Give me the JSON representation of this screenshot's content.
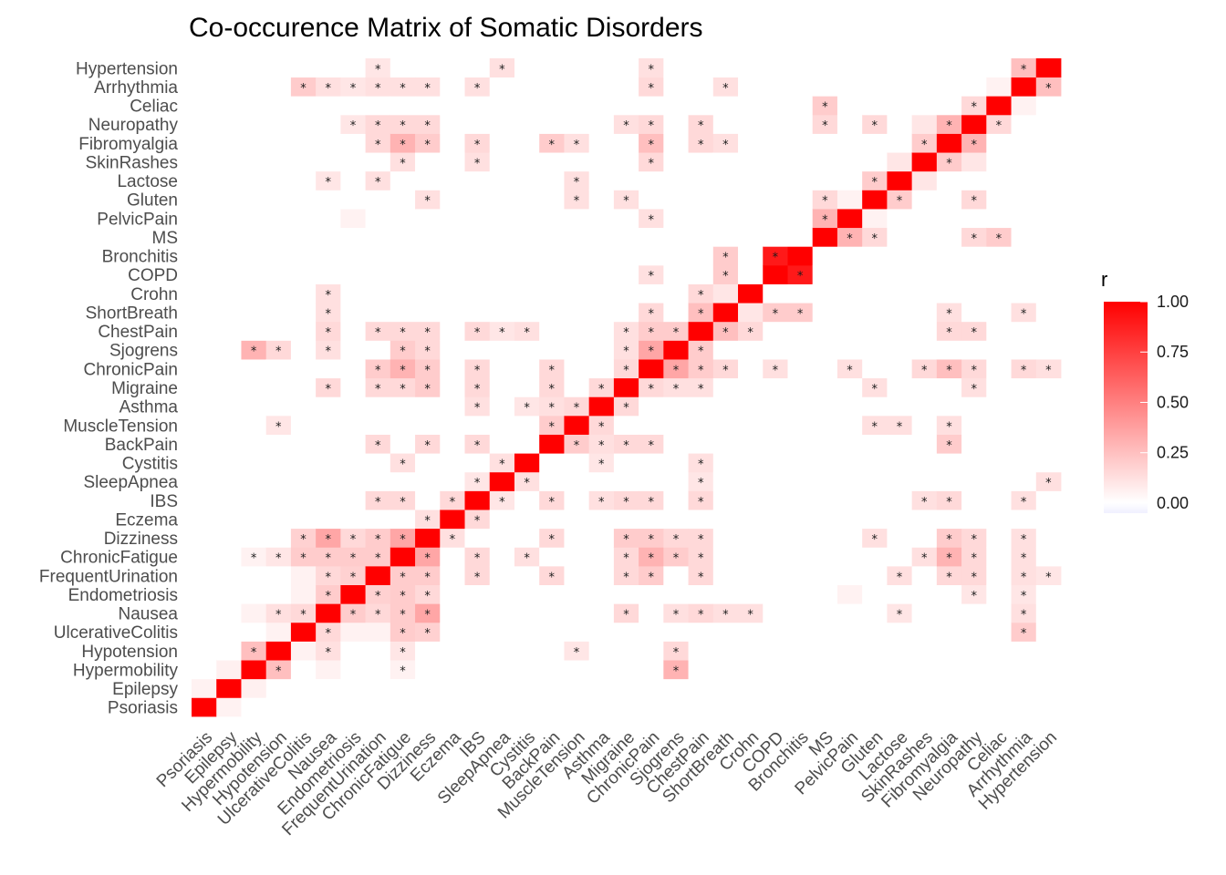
{
  "chart_data": {
    "type": "heatmap",
    "title": "Co-occurence Matrix of Somatic Disorders",
    "xlabel": "",
    "ylabel": "",
    "legend": {
      "title": "r",
      "placement": "right",
      "ticks": [
        "1.00",
        "0.75",
        "0.50",
        "0.25",
        "0.00"
      ],
      "tick_values": [
        1.0,
        0.75,
        0.5,
        0.25,
        0.0
      ],
      "range": [
        -0.05,
        1.0
      ]
    },
    "colors": {
      "high": "#ff0000",
      "mid": "#ffffff",
      "low": "#f0f0ff"
    },
    "significance_marker": "*",
    "variables": [
      "Psoriasis",
      "Epilepsy",
      "Hypermobility",
      "Hypotension",
      "UlcerativeColitis",
      "Nausea",
      "Endometriosis",
      "FrequentUrination",
      "ChronicFatigue",
      "Dizziness",
      "Eczema",
      "IBS",
      "SleepApnea",
      "Cystitis",
      "BackPain",
      "MuscleTension",
      "Asthma",
      "Migraine",
      "ChronicPain",
      "Sjogrens",
      "ChestPain",
      "ShortBreath",
      "Crohn",
      "COPD",
      "Bronchitis",
      "MS",
      "PelvicPain",
      "Gluten",
      "Lactose",
      "SkinRashes",
      "Fibromyalgia",
      "Neuropathy",
      "Celiac",
      "Arrhythmia",
      "Hypertension"
    ],
    "pairs": [
      [
        "Psoriasis",
        "Epilepsy",
        0.05,
        false
      ],
      [
        "Epilepsy",
        "Hypermobility",
        0.06,
        false
      ],
      [
        "Hypermobility",
        "Hypotension",
        0.25,
        true
      ],
      [
        "Hypermobility",
        "ChronicFatigue",
        0.05,
        true
      ],
      [
        "Hypermobility",
        "Sjogrens",
        0.3,
        true
      ],
      [
        "Hypermobility",
        "Nausea",
        0.05,
        false
      ],
      [
        "Hypotension",
        "UlcerativeColitis",
        0.05,
        false
      ],
      [
        "Hypotension",
        "Nausea",
        0.12,
        true
      ],
      [
        "Hypotension",
        "ChronicFatigue",
        0.1,
        true
      ],
      [
        "Hypotension",
        "MuscleTension",
        0.1,
        true
      ],
      [
        "Hypotension",
        "Sjogrens",
        0.15,
        true
      ],
      [
        "UlcerativeColitis",
        "Nausea",
        0.15,
        true
      ],
      [
        "UlcerativeColitis",
        "ChronicFatigue",
        0.2,
        true
      ],
      [
        "UlcerativeColitis",
        "Dizziness",
        0.18,
        true
      ],
      [
        "UlcerativeColitis",
        "Arrhythmia",
        0.2,
        true
      ],
      [
        "UlcerativeColitis",
        "FrequentUrination",
        0.05,
        false
      ],
      [
        "UlcerativeColitis",
        "Endometriosis",
        0.05,
        false
      ],
      [
        "Nausea",
        "Endometriosis",
        0.2,
        true
      ],
      [
        "Nausea",
        "FrequentUrination",
        0.15,
        true
      ],
      [
        "Nausea",
        "ChronicFatigue",
        0.2,
        true
      ],
      [
        "Nausea",
        "Dizziness",
        0.35,
        true
      ],
      [
        "Nausea",
        "Migraine",
        0.15,
        true
      ],
      [
        "Nausea",
        "ChestPain",
        0.15,
        true
      ],
      [
        "Nausea",
        "ShortBreath",
        0.12,
        true
      ],
      [
        "Nausea",
        "Crohn",
        0.12,
        true
      ],
      [
        "Nausea",
        "Sjogrens",
        0.12,
        true
      ],
      [
        "Nausea",
        "Lactose",
        0.1,
        true
      ],
      [
        "Nausea",
        "Arrhythmia",
        0.12,
        true
      ],
      [
        "Endometriosis",
        "FrequentUrination",
        0.18,
        true
      ],
      [
        "Endometriosis",
        "ChronicFatigue",
        0.2,
        true
      ],
      [
        "Endometriosis",
        "Dizziness",
        0.15,
        true
      ],
      [
        "Endometriosis",
        "Neuropathy",
        0.1,
        true
      ],
      [
        "Endometriosis",
        "Arrhythmia",
        0.1,
        true
      ],
      [
        "Endometriosis",
        "PelvicPain",
        0.05,
        false
      ],
      [
        "FrequentUrination",
        "ChronicFatigue",
        0.2,
        true
      ],
      [
        "FrequentUrination",
        "Dizziness",
        0.2,
        true
      ],
      [
        "FrequentUrination",
        "IBS",
        0.15,
        true
      ],
      [
        "FrequentUrination",
        "BackPain",
        0.15,
        true
      ],
      [
        "FrequentUrination",
        "Migraine",
        0.15,
        true
      ],
      [
        "FrequentUrination",
        "ChronicPain",
        0.2,
        true
      ],
      [
        "FrequentUrination",
        "ChestPain",
        0.15,
        true
      ],
      [
        "FrequentUrination",
        "Lactose",
        0.12,
        true
      ],
      [
        "FrequentUrination",
        "Fibromyalgia",
        0.15,
        true
      ],
      [
        "FrequentUrination",
        "Neuropathy",
        0.15,
        true
      ],
      [
        "FrequentUrination",
        "Arrhythmia",
        0.12,
        true
      ],
      [
        "FrequentUrination",
        "Hypertension",
        0.1,
        true
      ],
      [
        "ChronicFatigue",
        "Dizziness",
        0.35,
        true
      ],
      [
        "ChronicFatigue",
        "IBS",
        0.15,
        true
      ],
      [
        "ChronicFatigue",
        "Cystitis",
        0.12,
        true
      ],
      [
        "ChronicFatigue",
        "Migraine",
        0.15,
        true
      ],
      [
        "ChronicFatigue",
        "ChronicPain",
        0.3,
        true
      ],
      [
        "ChronicFatigue",
        "Sjogrens",
        0.2,
        true
      ],
      [
        "ChronicFatigue",
        "ChestPain",
        0.15,
        true
      ],
      [
        "ChronicFatigue",
        "SkinRashes",
        0.12,
        true
      ],
      [
        "ChronicFatigue",
        "Fibromyalgia",
        0.3,
        true
      ],
      [
        "ChronicFatigue",
        "Neuropathy",
        0.15,
        true
      ],
      [
        "ChronicFatigue",
        "Arrhythmia",
        0.12,
        true
      ],
      [
        "Dizziness",
        "Eczema",
        0.12,
        true
      ],
      [
        "Dizziness",
        "BackPain",
        0.15,
        true
      ],
      [
        "Dizziness",
        "Migraine",
        0.2,
        true
      ],
      [
        "Dizziness",
        "ChronicPain",
        0.2,
        true
      ],
      [
        "Dizziness",
        "Sjogrens",
        0.15,
        true
      ],
      [
        "Dizziness",
        "ChestPain",
        0.15,
        true
      ],
      [
        "Dizziness",
        "Gluten",
        0.12,
        true
      ],
      [
        "Dizziness",
        "Fibromyalgia",
        0.2,
        true
      ],
      [
        "Dizziness",
        "Neuropathy",
        0.15,
        true
      ],
      [
        "Dizziness",
        "Arrhythmia",
        0.12,
        true
      ],
      [
        "Eczema",
        "IBS",
        0.15,
        true
      ],
      [
        "IBS",
        "SleepApnea",
        0.1,
        true
      ],
      [
        "IBS",
        "BackPain",
        0.15,
        true
      ],
      [
        "IBS",
        "Asthma",
        0.12,
        true
      ],
      [
        "IBS",
        "Migraine",
        0.15,
        true
      ],
      [
        "IBS",
        "ChronicPain",
        0.15,
        true
      ],
      [
        "IBS",
        "ChestPain",
        0.15,
        true
      ],
      [
        "IBS",
        "SkinRashes",
        0.12,
        true
      ],
      [
        "IBS",
        "Fibromyalgia",
        0.15,
        true
      ],
      [
        "IBS",
        "Arrhythmia",
        0.12,
        true
      ],
      [
        "SleepApnea",
        "Cystitis",
        0.12,
        true
      ],
      [
        "SleepApnea",
        "ChestPain",
        0.1,
        true
      ],
      [
        "SleepApnea",
        "Hypertension",
        0.12,
        true
      ],
      [
        "Cystitis",
        "ChestPain",
        0.12,
        true
      ],
      [
        "Cystitis",
        "Asthma",
        0.1,
        true
      ],
      [
        "BackPain",
        "MuscleTension",
        0.2,
        true
      ],
      [
        "BackPain",
        "Asthma",
        0.12,
        true
      ],
      [
        "BackPain",
        "Migraine",
        0.15,
        true
      ],
      [
        "BackPain",
        "ChronicPain",
        0.15,
        true
      ],
      [
        "BackPain",
        "Fibromyalgia",
        0.2,
        true
      ],
      [
        "MuscleTension",
        "Asthma",
        0.15,
        true
      ],
      [
        "MuscleTension",
        "Gluten",
        0.12,
        true
      ],
      [
        "MuscleTension",
        "Lactose",
        0.12,
        true
      ],
      [
        "MuscleTension",
        "Fibromyalgia",
        0.12,
        true
      ],
      [
        "Asthma",
        "Migraine",
        0.15,
        true
      ],
      [
        "Migraine",
        "ChronicPain",
        0.15,
        true
      ],
      [
        "Migraine",
        "Sjogrens",
        0.12,
        true
      ],
      [
        "Migraine",
        "ChestPain",
        0.12,
        true
      ],
      [
        "Migraine",
        "Gluten",
        0.12,
        true
      ],
      [
        "Migraine",
        "Neuropathy",
        0.12,
        true
      ],
      [
        "ChronicPain",
        "Sjogrens",
        0.35,
        true
      ],
      [
        "ChronicPain",
        "ChestPain",
        0.2,
        true
      ],
      [
        "ChronicPain",
        "ShortBreath",
        0.15,
        true
      ],
      [
        "ChronicPain",
        "COPD",
        0.12,
        true
      ],
      [
        "ChronicPain",
        "PelvicPain",
        0.12,
        true
      ],
      [
        "ChronicPain",
        "SkinRashes",
        0.15,
        true
      ],
      [
        "ChronicPain",
        "Fibromyalgia",
        0.25,
        true
      ],
      [
        "ChronicPain",
        "Neuropathy",
        0.15,
        true
      ],
      [
        "ChronicPain",
        "Arrhythmia",
        0.15,
        true
      ],
      [
        "ChronicPain",
        "Hypertension",
        0.12,
        true
      ],
      [
        "Sjogrens",
        "ChestPain",
        0.2,
        true
      ],
      [
        "ChestPain",
        "ShortBreath",
        0.25,
        true
      ],
      [
        "ChestPain",
        "Crohn",
        0.15,
        true
      ],
      [
        "ChestPain",
        "Fibromyalgia",
        0.15,
        true
      ],
      [
        "ChestPain",
        "Neuropathy",
        0.15,
        true
      ],
      [
        "ShortBreath",
        "Crohn",
        0.1,
        false
      ],
      [
        "ShortBreath",
        "COPD",
        0.2,
        true
      ],
      [
        "ShortBreath",
        "Bronchitis",
        0.2,
        true
      ],
      [
        "ShortBreath",
        "Fibromyalgia",
        0.12,
        true
      ],
      [
        "ShortBreath",
        "Arrhythmia",
        0.12,
        true
      ],
      [
        "COPD",
        "Bronchitis",
        0.9,
        true
      ],
      [
        "MS",
        "PelvicPain",
        0.3,
        true
      ],
      [
        "MS",
        "Gluten",
        0.15,
        true
      ],
      [
        "MS",
        "Celiac",
        0.2,
        true
      ],
      [
        "MS",
        "Neuropathy",
        0.15,
        true
      ],
      [
        "PelvicPain",
        "Gluten",
        0.05,
        false
      ],
      [
        "Gluten",
        "Lactose",
        0.2,
        true
      ],
      [
        "Gluten",
        "Neuropathy",
        0.15,
        true
      ],
      [
        "Lactose",
        "SkinRashes",
        0.1,
        false
      ],
      [
        "SkinRashes",
        "Fibromyalgia",
        0.2,
        true
      ],
      [
        "SkinRashes",
        "Neuropathy",
        0.1,
        false
      ],
      [
        "Fibromyalgia",
        "Neuropathy",
        0.3,
        true
      ],
      [
        "Neuropathy",
        "Celiac",
        0.15,
        true
      ],
      [
        "Celiac",
        "Arrhythmia",
        0.05,
        false
      ],
      [
        "Arrhythmia",
        "Hypertension",
        0.25,
        true
      ]
    ]
  }
}
